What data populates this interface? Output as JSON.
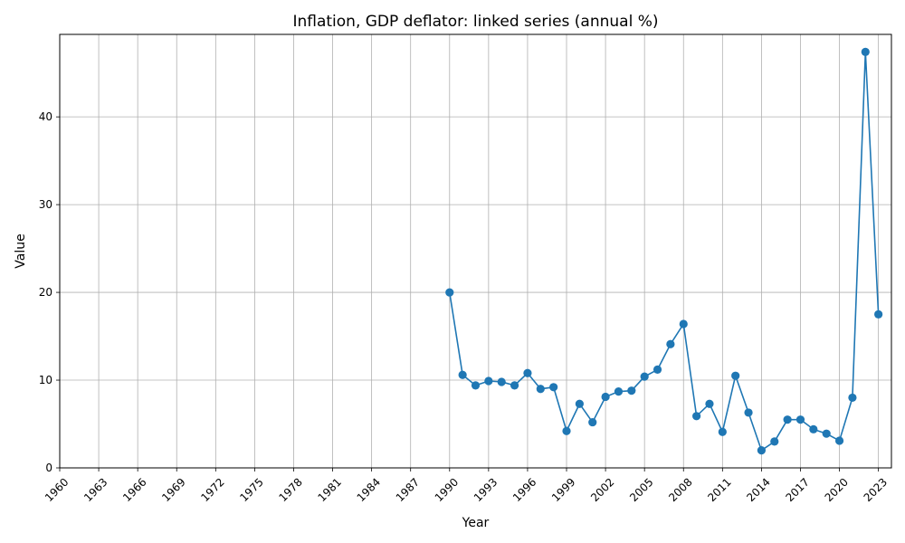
{
  "chart_data": {
    "type": "line",
    "title": "Inflation, GDP deflator: linked series (annual %)",
    "xlabel": "Year",
    "ylabel": "Value",
    "xlim": [
      1960,
      2024
    ],
    "ylim": [
      0,
      49.4
    ],
    "grid": true,
    "x_ticks": [
      1960,
      1963,
      1966,
      1969,
      1972,
      1975,
      1978,
      1981,
      1984,
      1987,
      1990,
      1993,
      1996,
      1999,
      2002,
      2005,
      2008,
      2011,
      2014,
      2017,
      2020,
      2023
    ],
    "y_ticks": [
      0,
      10,
      20,
      30,
      40
    ],
    "series": [
      {
        "color": "#1f77b4",
        "x": [
          1990,
          1991,
          1992,
          1993,
          1994,
          1995,
          1996,
          1997,
          1998,
          1999,
          2000,
          2001,
          2002,
          2003,
          2004,
          2005,
          2006,
          2007,
          2008,
          2009,
          2010,
          2011,
          2012,
          2013,
          2014,
          2015,
          2016,
          2017,
          2018,
          2019,
          2020,
          2021,
          2022,
          2023
        ],
        "values": [
          20.0,
          10.6,
          9.4,
          9.9,
          9.8,
          9.4,
          10.8,
          9.0,
          9.2,
          4.2,
          7.3,
          5.2,
          8.1,
          8.7,
          8.8,
          10.4,
          11.2,
          14.1,
          16.4,
          5.9,
          7.3,
          4.1,
          10.5,
          6.3,
          2.0,
          3.0,
          5.5,
          5.5,
          4.4,
          3.9,
          3.1,
          8.0,
          47.4,
          17.5
        ]
      }
    ]
  }
}
